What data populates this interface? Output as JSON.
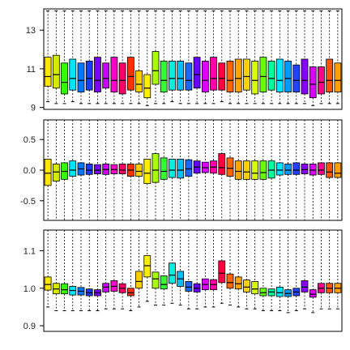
{
  "chart_data": [
    {
      "type": "box",
      "ylim": [
        8.9,
        14.1
      ],
      "yticks": [
        "9",
        "11",
        "13"
      ],
      "ytick_values": [
        9,
        11,
        13
      ],
      "grid": false,
      "boxes": [
        {
          "q1": 10.1,
          "median": 10.6,
          "q3": 11.6,
          "wlo": 9.3,
          "whi": 14.0,
          "color": "#ffe600"
        },
        {
          "q1": 10.0,
          "median": 10.7,
          "q3": 11.7,
          "wlo": 9.2,
          "whi": 14.0,
          "color": "#d4ea00"
        },
        {
          "q1": 9.7,
          "median": 10.3,
          "q3": 11.3,
          "wlo": 9.2,
          "whi": 14.0,
          "color": "#33ff00"
        },
        {
          "q1": 9.9,
          "median": 10.5,
          "q3": 11.5,
          "wlo": 9.3,
          "whi": 14.0,
          "color": "#00e5ff"
        },
        {
          "q1": 9.8,
          "median": 10.4,
          "q3": 11.3,
          "wlo": 9.2,
          "whi": 14.0,
          "color": "#0077ff"
        },
        {
          "q1": 9.9,
          "median": 10.5,
          "q3": 11.4,
          "wlo": 9.2,
          "whi": 14.0,
          "color": "#1a3cff"
        },
        {
          "q1": 9.8,
          "median": 10.4,
          "q3": 11.6,
          "wlo": 9.2,
          "whi": 14.0,
          "color": "#7a00ff"
        },
        {
          "q1": 10.0,
          "median": 10.5,
          "q3": 11.3,
          "wlo": 9.2,
          "whi": 14.0,
          "color": "#cc00ff"
        },
        {
          "q1": 9.8,
          "median": 10.4,
          "q3": 11.6,
          "wlo": 9.2,
          "whi": 14.0,
          "color": "#ff00cc"
        },
        {
          "q1": 9.7,
          "median": 10.4,
          "q3": 11.3,
          "wlo": 9.2,
          "whi": 14.0,
          "color": "#ff0066"
        },
        {
          "q1": 9.9,
          "median": 10.6,
          "q3": 11.6,
          "wlo": 9.2,
          "whi": 14.0,
          "color": "#ff3300"
        },
        {
          "q1": 9.8,
          "median": 10.2,
          "q3": 10.9,
          "wlo": 9.2,
          "whi": 14.0,
          "color": "#ffcc00"
        },
        {
          "q1": 9.5,
          "median": 10.0,
          "q3": 10.7,
          "wlo": 9.1,
          "whi": 14.0,
          "color": "#ffee00"
        },
        {
          "q1": 10.2,
          "median": 10.9,
          "q3": 11.9,
          "wlo": 9.2,
          "whi": 14.0,
          "color": "#aaff00"
        },
        {
          "q1": 9.8,
          "median": 10.4,
          "q3": 11.4,
          "wlo": 9.2,
          "whi": 14.0,
          "color": "#33ff33"
        },
        {
          "q1": 9.9,
          "median": 10.5,
          "q3": 11.4,
          "wlo": 9.3,
          "whi": 14.0,
          "color": "#00f0e0"
        },
        {
          "q1": 9.9,
          "median": 10.5,
          "q3": 11.4,
          "wlo": 9.2,
          "whi": 14.0,
          "color": "#00bfff"
        },
        {
          "q1": 9.9,
          "median": 10.4,
          "q3": 11.3,
          "wlo": 9.2,
          "whi": 14.0,
          "color": "#1a66ff"
        },
        {
          "q1": 10.0,
          "median": 10.7,
          "q3": 11.6,
          "wlo": 9.2,
          "whi": 14.0,
          "color": "#6600ff"
        },
        {
          "q1": 9.8,
          "median": 10.4,
          "q3": 11.4,
          "wlo": 9.2,
          "whi": 14.0,
          "color": "#dd00ff"
        },
        {
          "q1": 9.9,
          "median": 10.5,
          "q3": 11.6,
          "wlo": 9.2,
          "whi": 14.0,
          "color": "#ff00aa"
        },
        {
          "q1": 9.9,
          "median": 10.5,
          "q3": 11.3,
          "wlo": 9.3,
          "whi": 14.0,
          "color": "#ff0040"
        },
        {
          "q1": 9.8,
          "median": 10.4,
          "q3": 11.4,
          "wlo": 9.2,
          "whi": 14.0,
          "color": "#ff6600"
        },
        {
          "q1": 9.8,
          "median": 10.5,
          "q3": 11.5,
          "wlo": 9.2,
          "whi": 14.0,
          "color": "#ffa500"
        },
        {
          "q1": 9.9,
          "median": 10.6,
          "q3": 11.5,
          "wlo": 9.2,
          "whi": 14.0,
          "color": "#ffd000"
        },
        {
          "q1": 9.7,
          "median": 10.4,
          "q3": 11.4,
          "wlo": 9.2,
          "whi": 14.0,
          "color": "#d8ff00"
        },
        {
          "q1": 9.8,
          "median": 10.6,
          "q3": 11.6,
          "wlo": 9.2,
          "whi": 14.0,
          "color": "#66ff00"
        },
        {
          "q1": 9.9,
          "median": 10.5,
          "q3": 11.4,
          "wlo": 9.2,
          "whi": 14.0,
          "color": "#00ff99"
        },
        {
          "q1": 9.8,
          "median": 10.4,
          "q3": 11.5,
          "wlo": 9.2,
          "whi": 14.0,
          "color": "#00e5ff"
        },
        {
          "q1": 9.8,
          "median": 10.5,
          "q3": 11.4,
          "wlo": 9.2,
          "whi": 14.0,
          "color": "#0099ff"
        },
        {
          "q1": 9.8,
          "median": 10.4,
          "q3": 11.2,
          "wlo": 9.2,
          "whi": 14.0,
          "color": "#2244ff"
        },
        {
          "q1": 9.7,
          "median": 10.4,
          "q3": 11.5,
          "wlo": 9.2,
          "whi": 14.0,
          "color": "#8800ff"
        },
        {
          "q1": 9.5,
          "median": 10.2,
          "q3": 11.1,
          "wlo": 9.1,
          "whi": 14.0,
          "color": "#dd00ff"
        },
        {
          "q1": 9.7,
          "median": 10.3,
          "q3": 11.1,
          "wlo": 9.2,
          "whi": 14.0,
          "color": "#ff0088"
        },
        {
          "q1": 9.8,
          "median": 10.4,
          "q3": 11.5,
          "wlo": 9.2,
          "whi": 14.0,
          "color": "#ff5500"
        },
        {
          "q1": 9.8,
          "median": 10.4,
          "q3": 11.3,
          "wlo": 9.2,
          "whi": 14.0,
          "color": "#ffa000"
        }
      ]
    },
    {
      "type": "box",
      "ylim": [
        -0.82,
        0.82
      ],
      "yticks": [
        "-0.5",
        "0.0",
        "0.5"
      ],
      "ytick_values": [
        -0.5,
        0.0,
        0.5
      ],
      "grid": false,
      "boxes": [
        {
          "q1": -0.25,
          "median": -0.05,
          "q3": 0.18,
          "wlo": -0.82,
          "whi": 0.82,
          "color": "#ffe600"
        },
        {
          "q1": -0.18,
          "median": -0.03,
          "q3": 0.1,
          "wlo": -0.82,
          "whi": 0.82,
          "color": "#d4ea00"
        },
        {
          "q1": -0.15,
          "median": -0.02,
          "q3": 0.12,
          "wlo": -0.82,
          "whi": 0.82,
          "color": "#33ff00"
        },
        {
          "q1": -0.1,
          "median": 0.0,
          "q3": 0.15,
          "wlo": -0.82,
          "whi": 0.82,
          "color": "#00e5ff"
        },
        {
          "q1": -0.08,
          "median": 0.02,
          "q3": 0.12,
          "wlo": -0.82,
          "whi": 0.82,
          "color": "#0077ff"
        },
        {
          "q1": -0.07,
          "median": 0.0,
          "q3": 0.1,
          "wlo": -0.82,
          "whi": 0.82,
          "color": "#1a3cff"
        },
        {
          "q1": -0.06,
          "median": 0.0,
          "q3": 0.09,
          "wlo": -0.82,
          "whi": 0.82,
          "color": "#7a00ff"
        },
        {
          "q1": -0.07,
          "median": 0.01,
          "q3": 0.1,
          "wlo": -0.82,
          "whi": 0.82,
          "color": "#cc00ff"
        },
        {
          "q1": -0.06,
          "median": 0.01,
          "q3": 0.09,
          "wlo": -0.82,
          "whi": 0.82,
          "color": "#ff00cc"
        },
        {
          "q1": -0.06,
          "median": 0.0,
          "q3": 0.1,
          "wlo": -0.82,
          "whi": 0.82,
          "color": "#ff0066"
        },
        {
          "q1": -0.1,
          "median": 0.0,
          "q3": 0.1,
          "wlo": -0.82,
          "whi": 0.82,
          "color": "#ff3300"
        },
        {
          "q1": -0.1,
          "median": -0.02,
          "q3": 0.1,
          "wlo": -0.82,
          "whi": 0.82,
          "color": "#ffcc00"
        },
        {
          "q1": -0.22,
          "median": -0.05,
          "q3": 0.18,
          "wlo": -0.82,
          "whi": 0.82,
          "color": "#ffee00"
        },
        {
          "q1": -0.2,
          "median": 0.0,
          "q3": 0.27,
          "wlo": -0.82,
          "whi": 0.82,
          "color": "#aaff00"
        },
        {
          "q1": -0.15,
          "median": -0.02,
          "q3": 0.2,
          "wlo": -0.82,
          "whi": 0.82,
          "color": "#33ff33"
        },
        {
          "q1": -0.12,
          "median": 0.0,
          "q3": 0.18,
          "wlo": -0.82,
          "whi": 0.82,
          "color": "#00f0e0"
        },
        {
          "q1": -0.13,
          "median": 0.0,
          "q3": 0.18,
          "wlo": -0.82,
          "whi": 0.82,
          "color": "#00bfff"
        },
        {
          "q1": -0.1,
          "median": 0.02,
          "q3": 0.17,
          "wlo": -0.82,
          "whi": 0.82,
          "color": "#1a66ff"
        },
        {
          "q1": -0.05,
          "median": 0.05,
          "q3": 0.15,
          "wlo": -0.82,
          "whi": 0.82,
          "color": "#6600ff"
        },
        {
          "q1": -0.04,
          "median": 0.04,
          "q3": 0.13,
          "wlo": -0.82,
          "whi": 0.82,
          "color": "#dd00ff"
        },
        {
          "q1": -0.05,
          "median": 0.05,
          "q3": 0.15,
          "wlo": -0.82,
          "whi": 0.82,
          "color": "#ff00aa"
        },
        {
          "q1": -0.07,
          "median": 0.04,
          "q3": 0.27,
          "wlo": -0.82,
          "whi": 0.82,
          "color": "#ff0040"
        },
        {
          "q1": -0.1,
          "median": 0.03,
          "q3": 0.2,
          "wlo": -0.82,
          "whi": 0.82,
          "color": "#ff6600"
        },
        {
          "q1": -0.15,
          "median": -0.02,
          "q3": 0.15,
          "wlo": -0.82,
          "whi": 0.82,
          "color": "#ffa500"
        },
        {
          "q1": -0.15,
          "median": -0.03,
          "q3": 0.15,
          "wlo": -0.82,
          "whi": 0.82,
          "color": "#ffd000"
        },
        {
          "q1": -0.15,
          "median": -0.05,
          "q3": 0.15,
          "wlo": -0.82,
          "whi": 0.82,
          "color": "#d8ff00"
        },
        {
          "q1": -0.15,
          "median": -0.04,
          "q3": 0.15,
          "wlo": -0.82,
          "whi": 0.82,
          "color": "#66ff00"
        },
        {
          "q1": -0.13,
          "median": 0.0,
          "q3": 0.15,
          "wlo": -0.82,
          "whi": 0.82,
          "color": "#00ff99"
        },
        {
          "q1": -0.08,
          "median": 0.0,
          "q3": 0.12,
          "wlo": -0.82,
          "whi": 0.82,
          "color": "#00e5ff"
        },
        {
          "q1": -0.07,
          "median": 0.0,
          "q3": 0.1,
          "wlo": -0.82,
          "whi": 0.82,
          "color": "#0099ff"
        },
        {
          "q1": -0.07,
          "median": 0.0,
          "q3": 0.12,
          "wlo": -0.82,
          "whi": 0.82,
          "color": "#2244ff"
        },
        {
          "q1": -0.06,
          "median": 0.01,
          "q3": 0.1,
          "wlo": -0.82,
          "whi": 0.82,
          "color": "#8800ff"
        },
        {
          "q1": -0.08,
          "median": 0.0,
          "q3": 0.1,
          "wlo": -0.82,
          "whi": 0.82,
          "color": "#dd00ff"
        },
        {
          "q1": -0.07,
          "median": 0.0,
          "q3": 0.12,
          "wlo": -0.82,
          "whi": 0.82,
          "color": "#ff0088"
        },
        {
          "q1": -0.12,
          "median": -0.03,
          "q3": 0.12,
          "wlo": -0.82,
          "whi": 0.82,
          "color": "#ff5500"
        },
        {
          "q1": -0.12,
          "median": -0.05,
          "q3": 0.12,
          "wlo": -0.82,
          "whi": 0.82,
          "color": "#ffa000"
        }
      ]
    },
    {
      "type": "box",
      "ylim": [
        0.885,
        1.155
      ],
      "yticks": [
        "0.9",
        "1.0",
        "1.1"
      ],
      "ytick_values": [
        0.9,
        1.0,
        1.1
      ],
      "grid": false,
      "boxes": [
        {
          "q1": 0.995,
          "median": 1.01,
          "q3": 1.03,
          "wlo": 0.95,
          "whi": 1.155,
          "color": "#ffe600"
        },
        {
          "q1": 0.985,
          "median": 0.998,
          "q3": 1.013,
          "wlo": 0.94,
          "whi": 1.155,
          "color": "#d4ea00"
        },
        {
          "q1": 0.985,
          "median": 0.996,
          "q3": 1.012,
          "wlo": 0.94,
          "whi": 1.155,
          "color": "#33ff00"
        },
        {
          "q1": 0.982,
          "median": 0.994,
          "q3": 1.005,
          "wlo": 0.94,
          "whi": 1.155,
          "color": "#00e5ff"
        },
        {
          "q1": 0.982,
          "median": 0.992,
          "q3": 1.002,
          "wlo": 0.94,
          "whi": 1.155,
          "color": "#0077ff"
        },
        {
          "q1": 0.98,
          "median": 0.988,
          "q3": 0.998,
          "wlo": 0.94,
          "whi": 1.155,
          "color": "#1a3cff"
        },
        {
          "q1": 0.98,
          "median": 0.988,
          "q3": 0.996,
          "wlo": 0.94,
          "whi": 1.155,
          "color": "#7a00ff"
        },
        {
          "q1": 0.99,
          "median": 1.003,
          "q3": 1.013,
          "wlo": 0.945,
          "whi": 1.155,
          "color": "#cc00ff"
        },
        {
          "q1": 0.992,
          "median": 1.005,
          "q3": 1.02,
          "wlo": 0.945,
          "whi": 1.155,
          "color": "#ff00cc"
        },
        {
          "q1": 0.988,
          "median": 1.0,
          "q3": 1.012,
          "wlo": 0.945,
          "whi": 1.155,
          "color": "#ff0066"
        },
        {
          "q1": 0.98,
          "median": 0.988,
          "q3": 1.0,
          "wlo": 0.94,
          "whi": 1.155,
          "color": "#ff3300"
        },
        {
          "q1": 1.0,
          "median": 1.018,
          "q3": 1.045,
          "wlo": 0.95,
          "whi": 1.155,
          "color": "#ffcc00"
        },
        {
          "q1": 1.03,
          "median": 1.06,
          "q3": 1.087,
          "wlo": 0.965,
          "whi": 1.155,
          "color": "#ffee00"
        },
        {
          "q1": 1.0,
          "median": 1.025,
          "q3": 1.043,
          "wlo": 0.955,
          "whi": 1.155,
          "color": "#aaff00"
        },
        {
          "q1": 0.998,
          "median": 1.01,
          "q3": 1.033,
          "wlo": 0.955,
          "whi": 1.155,
          "color": "#33ff33"
        },
        {
          "q1": 1.013,
          "median": 1.035,
          "q3": 1.067,
          "wlo": 0.96,
          "whi": 1.155,
          "color": "#00f0e0"
        },
        {
          "q1": 1.005,
          "median": 1.025,
          "q3": 1.045,
          "wlo": 0.955,
          "whi": 1.155,
          "color": "#00bfff"
        },
        {
          "q1": 0.992,
          "median": 1.003,
          "q3": 1.018,
          "wlo": 0.945,
          "whi": 1.155,
          "color": "#1a66ff"
        },
        {
          "q1": 0.99,
          "median": 1.0,
          "q3": 1.012,
          "wlo": 0.945,
          "whi": 1.155,
          "color": "#6600ff"
        },
        {
          "q1": 0.996,
          "median": 1.01,
          "q3": 1.025,
          "wlo": 0.95,
          "whi": 1.155,
          "color": "#dd00ff"
        },
        {
          "q1": 0.996,
          "median": 1.01,
          "q3": 1.023,
          "wlo": 0.95,
          "whi": 1.155,
          "color": "#ff00aa"
        },
        {
          "q1": 1.015,
          "median": 1.04,
          "q3": 1.073,
          "wlo": 0.96,
          "whi": 1.155,
          "color": "#ff0040"
        },
        {
          "q1": 1.0,
          "median": 1.015,
          "q3": 1.038,
          "wlo": 0.955,
          "whi": 1.155,
          "color": "#ff6600"
        },
        {
          "q1": 0.998,
          "median": 1.012,
          "q3": 1.03,
          "wlo": 0.95,
          "whi": 1.155,
          "color": "#ffa500"
        },
        {
          "q1": 0.99,
          "median": 1.003,
          "q3": 1.022,
          "wlo": 0.945,
          "whi": 1.155,
          "color": "#ffd000"
        },
        {
          "q1": 0.985,
          "median": 0.998,
          "q3": 1.018,
          "wlo": 0.945,
          "whi": 1.155,
          "color": "#d8ff00"
        },
        {
          "q1": 0.98,
          "median": 0.988,
          "q3": 1.0,
          "wlo": 0.94,
          "whi": 1.155,
          "color": "#66ff00"
        },
        {
          "q1": 0.98,
          "median": 0.99,
          "q3": 0.998,
          "wlo": 0.94,
          "whi": 1.155,
          "color": "#00ff99"
        },
        {
          "q1": 0.978,
          "median": 0.988,
          "q3": 1.003,
          "wlo": 0.94,
          "whi": 1.155,
          "color": "#00e5ff"
        },
        {
          "q1": 0.978,
          "median": 0.986,
          "q3": 0.996,
          "wlo": 0.935,
          "whi": 1.155,
          "color": "#0099ff"
        },
        {
          "q1": 0.98,
          "median": 0.99,
          "q3": 1.0,
          "wlo": 0.94,
          "whi": 1.155,
          "color": "#2244ff"
        },
        {
          "q1": 0.99,
          "median": 1.003,
          "q3": 1.02,
          "wlo": 0.945,
          "whi": 1.155,
          "color": "#8800ff"
        },
        {
          "q1": 0.976,
          "median": 0.984,
          "q3": 0.996,
          "wlo": 0.935,
          "whi": 1.155,
          "color": "#dd00ff"
        },
        {
          "q1": 0.988,
          "median": 1.0,
          "q3": 1.013,
          "wlo": 0.945,
          "whi": 1.155,
          "color": "#ff0088"
        },
        {
          "q1": 0.988,
          "median": 1.0,
          "q3": 1.013,
          "wlo": 0.945,
          "whi": 1.155,
          "color": "#ff5500"
        },
        {
          "q1": 0.988,
          "median": 1.0,
          "q3": 1.013,
          "wlo": 0.945,
          "whi": 1.155,
          "color": "#ffa000"
        }
      ]
    }
  ]
}
